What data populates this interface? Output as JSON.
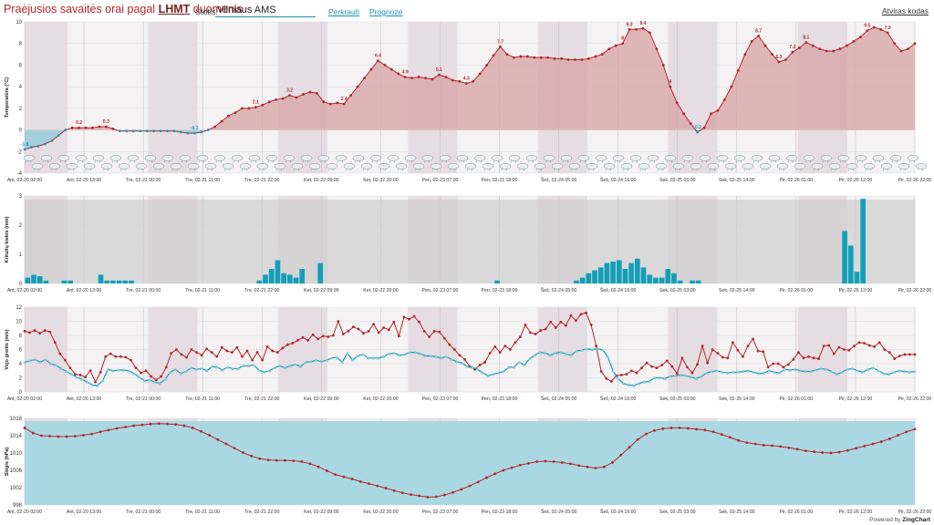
{
  "header": {
    "title_main": "Praėjusios savaitės orai",
    "title_mid": "pagal",
    "title_src": "LHMT",
    "title_tail": "duomenis",
    "station_label": "Stotis:",
    "station_value": "Vilniaus AMS",
    "reload_label": "Perkrauti",
    "forecast_label": "Prognozė",
    "embed_label": "Atviras kodas"
  },
  "footer": {
    "powered_prefix": "Powered by",
    "powered_brand": "ZingChart"
  },
  "colors": {
    "temp_pos": "#b3262b",
    "temp_neg": "#1a9bb8",
    "bar": "#139fb8",
    "wind_line": "#b3262b",
    "gust_line": "#1a9bb8",
    "pressure_fill": "#a9d8e2",
    "night_band": "#e6dde3"
  },
  "x_axis": {
    "ticks": [
      "Ant, 02-20 02:00",
      "Ant, 02-20 13:00",
      "Tre, 02-21 00:00",
      "Tre, 02-21 11:00",
      "Tre, 02-21 22:00",
      "Ket, 02-22 09:00",
      "Ket, 02-22 20:00",
      "Pen, 02-23 07:00",
      "Pen, 02-23 18:00",
      "Šeš, 02-24 05:00",
      "Šeš, 02-24 16:00",
      "Sek, 02-25 03:00",
      "Sek, 02-25 14:00",
      "Pir, 02-26 01:00",
      "Pir, 02-26 12:00",
      "Pir, 02-26 22:00"
    ]
  },
  "chart_data": [
    {
      "type": "area",
      "ylabel": "Temperatūra (°C)",
      "ylim": [
        -4,
        10
      ],
      "yticks": [
        -4,
        -2,
        0,
        2,
        4,
        6,
        8,
        10
      ],
      "points": [
        -1.8,
        -1.6,
        -1.5,
        -1.3,
        -1.0,
        -0.5,
        0.0,
        0.2,
        0.2,
        0.2,
        0.2,
        0.3,
        0.3,
        0.1,
        -0.1,
        -0.1,
        -0.1,
        -0.1,
        -0.1,
        -0.1,
        -0.1,
        -0.1,
        -0.1,
        -0.2,
        -0.3,
        -0.3,
        -0.2,
        0.0,
        0.3,
        0.8,
        1.3,
        1.6,
        2.0,
        2.0,
        2.1,
        2.3,
        2.6,
        2.8,
        2.9,
        3.2,
        3.0,
        3.3,
        3.5,
        3.4,
        2.6,
        2.4,
        2.5,
        2.4,
        3.2,
        4.0,
        4.8,
        5.6,
        6.4,
        6.0,
        5.6,
        5.2,
        4.9,
        4.8,
        4.9,
        4.8,
        4.7,
        5.1,
        4.9,
        4.6,
        4.5,
        4.3,
        4.5,
        5.2,
        6.0,
        6.9,
        7.7,
        7.0,
        6.7,
        6.8,
        6.8,
        6.7,
        6.7,
        6.7,
        6.6,
        6.6,
        6.5,
        6.5,
        6.5,
        6.6,
        6.8,
        7.0,
        7.5,
        7.8,
        8.0,
        9.3,
        9.3,
        9.4,
        9.0,
        7.5,
        6.0,
        4.0,
        2.5,
        1.5,
        0.6,
        -0.2,
        0.2,
        1.5,
        1.8,
        2.8,
        4.0,
        5.5,
        7.0,
        8.2,
        8.7,
        7.8,
        7.0,
        6.3,
        6.5,
        7.2,
        7.6,
        8.1,
        7.8,
        7.5,
        7.3,
        7.3,
        7.5,
        7.8,
        8.2,
        8.6,
        9.2,
        9.5,
        9.3,
        9.0,
        8.0,
        7.3,
        7.5,
        8.0
      ],
      "data_labels": [
        {
          "i": 0,
          "text": "-1.8"
        },
        {
          "i": 8,
          "text": "0.2"
        },
        {
          "i": 12,
          "text": "0.3"
        },
        {
          "i": 25,
          "text": "-0.3"
        },
        {
          "i": 34,
          "text": "2.1"
        },
        {
          "i": 39,
          "text": "3.2"
        },
        {
          "i": 47,
          "text": "2.4"
        },
        {
          "i": 52,
          "text": "6.4"
        },
        {
          "i": 56,
          "text": "4.9"
        },
        {
          "i": 61,
          "text": "5.1"
        },
        {
          "i": 65,
          "text": "4.3"
        },
        {
          "i": 70,
          "text": "7.7"
        },
        {
          "i": 88,
          "text": "8"
        },
        {
          "i": 89,
          "text": "9.3"
        },
        {
          "i": 91,
          "text": "9.4"
        },
        {
          "i": 95,
          "text": "4"
        },
        {
          "i": 99,
          "text": "-0.2"
        },
        {
          "i": 108,
          "text": "8.7"
        },
        {
          "i": 111,
          "text": "6.3"
        },
        {
          "i": 113,
          "text": "7.2"
        },
        {
          "i": 115,
          "text": "8.1"
        },
        {
          "i": 124,
          "text": "9.5"
        },
        {
          "i": 127,
          "text": "7.3"
        }
      ]
    },
    {
      "type": "bar",
      "ylabel": "Kritulių kiekis (mm)",
      "ylim": [
        0,
        3
      ],
      "yticks": [
        0,
        1,
        2,
        3
      ],
      "values": [
        0.2,
        0.3,
        0.25,
        0.1,
        0.0,
        0.0,
        0.1,
        0.1,
        0.0,
        0.0,
        0.0,
        0.0,
        0.3,
        0.1,
        0.1,
        0.1,
        0.1,
        0.1,
        0.0,
        0.0,
        0.0,
        0.0,
        0.0,
        0.0,
        0.0,
        0.0,
        0.0,
        0.0,
        0.0,
        0.0,
        0.0,
        0.0,
        0.0,
        0.0,
        0.0,
        0.0,
        0.0,
        0.0,
        0.1,
        0.3,
        0.5,
        0.8,
        0.35,
        0.3,
        0.2,
        0.5,
        0.0,
        0.0,
        0.7,
        0.0,
        0.0,
        0.0,
        0.0,
        0.0,
        0.0,
        0.0,
        0.0,
        0.0,
        0.0,
        0.0,
        0.0,
        0.0,
        0.0,
        0.0,
        0.0,
        0.0,
        0.0,
        0.0,
        0.0,
        0.0,
        0.0,
        0.0,
        0.0,
        0.0,
        0.0,
        0.0,
        0.0,
        0.1,
        0.0,
        0.0,
        0.0,
        0.0,
        0.0,
        0.0,
        0.0,
        0.0,
        0.0,
        0.0,
        0.0,
        0.0,
        0.1,
        0.2,
        0.35,
        0.45,
        0.55,
        0.7,
        0.75,
        0.8,
        0.5,
        0.7,
        0.85,
        0.55,
        0.3,
        0.2,
        0.2,
        0.5,
        0.35,
        0.1,
        0.0,
        0.1,
        0.1,
        0.0,
        0.0,
        0.0,
        0.0,
        0.0,
        0.0,
        0.0,
        0.0,
        0.0,
        0.0,
        0.0,
        0.0,
        0.0,
        0.0,
        0.0,
        0.0,
        0.0,
        0.0,
        0.0,
        0.0,
        0.0,
        0.0,
        0.0,
        1.8,
        1.3,
        0.4,
        2.9,
        0.0,
        0.0,
        0.0,
        0.0,
        0.0,
        0.0,
        0.0,
        0.0
      ]
    },
    {
      "type": "line",
      "ylabel": "Vėjo greitis (m/s)",
      "ylim": [
        0,
        12
      ],
      "yticks": [
        0,
        2,
        4,
        6,
        8,
        10,
        12
      ],
      "series": [
        {
          "values": [
            8.6,
            8.4,
            8.7,
            8.3,
            8.7,
            8.5,
            7.0,
            5.4,
            4.5,
            3.4,
            2.5,
            2.4,
            2.1,
            3.0,
            1.4,
            2.8,
            5.0,
            5.4,
            5.0,
            5.0,
            4.9,
            4.5,
            3.4,
            2.7,
            3.0,
            2.2,
            1.7,
            2.2,
            3.5,
            5.5,
            6.0,
            5.3,
            4.9,
            6.0,
            5.6,
            5.2,
            6.1,
            5.6,
            5.0,
            6.3,
            5.8,
            5.6,
            6.3,
            5.0,
            5.8,
            4.5,
            5.6,
            4.5,
            6.4,
            5.8,
            5.6,
            6.2,
            6.7,
            6.9,
            7.3,
            7.7,
            7.3,
            8.1,
            7.5,
            7.9,
            7.8,
            8.0,
            10.0,
            8.2,
            8.6,
            9.2,
            8.9,
            8.3,
            8.6,
            9.6,
            8.4,
            9.1,
            8.8,
            9.9,
            7.9,
            10.6,
            10.3,
            10.7,
            9.9,
            8.6,
            7.8,
            8.6,
            8.5,
            7.6,
            6.7,
            6.0,
            5.2,
            4.6,
            3.6,
            3.2,
            3.8,
            4.2,
            5.5,
            6.4,
            5.6,
            6.5,
            6.0,
            7.0,
            7.8,
            9.5,
            8.4,
            8.2,
            8.7,
            8.9,
            9.9,
            9.1,
            9.9,
            9.4,
            10.8,
            10.1,
            11.0,
            11.2,
            9.5,
            6.5,
            2.9,
            1.9,
            1.5,
            2.3,
            2.4,
            2.5,
            3.0,
            2.7,
            3.4,
            4.1,
            3.6,
            3.4,
            3.8,
            4.4,
            3.6,
            2.6,
            4.8,
            3.5,
            2.7,
            3.9,
            6.5,
            4.1,
            6.0,
            5.5,
            4.9,
            4.8,
            7.0,
            5.9,
            5.0,
            6.5,
            7.5,
            5.8,
            5.7,
            3.5,
            4.0,
            4.0,
            3.5,
            3.9,
            4.6,
            5.6,
            4.8,
            5.0,
            4.8,
            4.7,
            6.5,
            6.6,
            5.4,
            6.3,
            6.0,
            5.9,
            6.5,
            7.0,
            6.9,
            6.6,
            6.4,
            7.0,
            6.0,
            5.6,
            4.7,
            5.1,
            5.3,
            5.3,
            5.3
          ]
        },
        {
          "values": [
            4.2,
            4.4,
            4.6,
            4.2,
            4.6,
            4.0,
            3.8,
            3.3,
            2.9,
            2.5,
            2.1,
            1.8,
            1.4,
            1.0,
            0.9,
            1.6,
            3.2,
            3.0,
            3.1,
            3.1,
            3.0,
            2.6,
            2.1,
            1.6,
            1.7,
            1.4,
            1.2,
            1.8,
            2.8,
            3.2,
            2.6,
            2.9,
            3.4,
            3.2,
            3.3,
            3.0,
            3.6,
            3.5,
            3.1,
            3.5,
            3.3,
            3.3,
            3.7,
            3.7,
            3.8,
            3.1,
            2.8,
            3.0,
            3.4,
            3.7,
            3.4,
            3.7,
            3.9,
            3.6,
            4.2,
            4.3,
            4.5,
            4.3,
            4.5,
            4.8,
            4.9,
            4.2,
            5.5,
            4.5,
            5.1,
            5.3,
            4.8,
            4.8,
            4.8,
            5.0,
            5.4,
            5.5,
            5.2,
            5.3,
            5.6,
            5.6,
            5.4,
            5.1,
            5.1,
            5.0,
            4.8,
            5.0,
            4.6,
            4.3,
            4.1,
            3.6,
            3.5,
            3.2,
            2.7,
            2.3,
            2.5,
            2.7,
            2.9,
            3.5,
            3.5,
            4.2,
            3.8,
            4.7,
            5.2,
            5.6,
            5.5,
            5.2,
            5.5,
            5.6,
            5.4,
            5.2,
            5.8,
            5.9,
            6.1,
            6.0,
            6.1,
            6.0,
            5.0,
            3.0,
            1.9,
            1.2,
            1.0,
            0.9,
            1.2,
            1.4,
            1.5,
            2.0,
            2.0,
            1.9,
            2.2,
            2.3,
            2.4,
            2.3,
            2.1,
            1.9,
            2.2,
            2.7,
            2.9,
            3.0,
            2.8,
            2.7,
            2.8,
            2.8,
            2.9,
            3.0,
            2.8,
            2.6,
            2.7,
            3.0,
            2.8,
            2.7,
            3.2,
            3.1,
            3.2,
            3.0,
            2.9,
            2.9,
            3.1,
            3.3,
            3.2,
            2.9,
            2.5,
            2.8,
            3.2,
            3.3,
            3.0,
            2.8,
            3.2,
            3.4,
            3.0,
            2.6,
            2.5,
            2.8,
            3.0,
            2.9,
            2.8,
            2.9
          ]
        }
      ]
    },
    {
      "type": "line",
      "ylabel": "Slėgis (hPa)",
      "ylim": [
        998,
        1018
      ],
      "yticks": [
        998,
        1002,
        1006,
        1010,
        1014,
        1018
      ],
      "points": [
        1015.8,
        1014.6,
        1014.0,
        1013.9,
        1013.8,
        1013.8,
        1013.9,
        1014.1,
        1014.4,
        1014.9,
        1015.3,
        1015.7,
        1016.0,
        1016.3,
        1016.5,
        1016.7,
        1016.8,
        1016.7,
        1016.6,
        1016.3,
        1015.8,
        1015.0,
        1014.1,
        1013.1,
        1012.1,
        1011.1,
        1010.1,
        1009.3,
        1008.7,
        1008.4,
        1008.3,
        1008.3,
        1008.2,
        1008.0,
        1007.5,
        1006.8,
        1005.9,
        1005.0,
        1004.5,
        1004.0,
        1003.4,
        1002.9,
        1002.4,
        1001.9,
        1001.3,
        1000.8,
        1000.4,
        1000.1,
        999.8,
        999.9,
        1000.3,
        1000.9,
        1001.6,
        1002.4,
        1003.3,
        1004.3,
        1005.2,
        1006.0,
        1006.6,
        1007.2,
        1007.6,
        1008.0,
        1008.1,
        1008.0,
        1007.8,
        1007.5,
        1007.1,
        1006.8,
        1006.5,
        1006.8,
        1007.8,
        1009.5,
        1011.3,
        1013.1,
        1014.4,
        1015.2,
        1015.6,
        1015.8,
        1015.8,
        1015.7,
        1015.5,
        1015.3,
        1014.9,
        1014.3,
        1013.6,
        1012.9,
        1012.4,
        1012.1,
        1011.8,
        1011.7,
        1011.5,
        1011.2,
        1010.9,
        1010.5,
        1010.3,
        1010.1,
        1010.0,
        1010.2,
        1010.6,
        1011.1,
        1011.6,
        1012.1,
        1012.6,
        1013.3,
        1014.1,
        1014.9,
        1015.5
      ]
    }
  ]
}
